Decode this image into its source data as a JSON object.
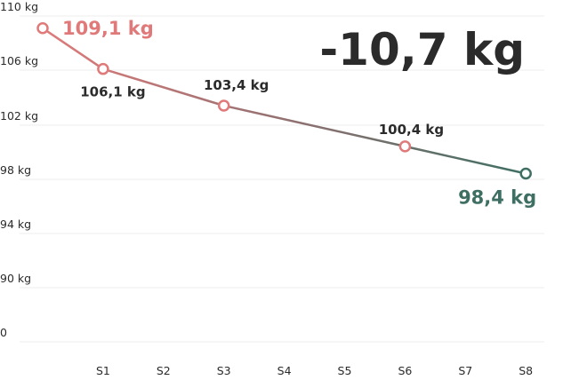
{
  "chart_data": {
    "type": "line",
    "headline": "-10,7 kg",
    "y_ticks": [
      "0",
      "90 kg",
      "94 kg",
      "98 kg",
      "102 kg",
      "106 kg",
      "110 kg"
    ],
    "categories": [
      "",
      "S1",
      "S2",
      "S3",
      "S4",
      "S5",
      "S6",
      "S7",
      "S8"
    ],
    "series": [
      {
        "values": [
          109.1,
          106.1,
          null,
          103.4,
          null,
          null,
          100.4,
          null,
          98.4
        ]
      }
    ],
    "point_labels": [
      "109,1 kg",
      "106,1 kg",
      "",
      "103,4 kg",
      "",
      "",
      "100,4 kg",
      "",
      "98,4 kg"
    ],
    "colors": {
      "start": "#e07a7a",
      "end": "#3f6f63",
      "text": "#2b2b2b",
      "grid": "#ececec"
    },
    "grid": true
  }
}
